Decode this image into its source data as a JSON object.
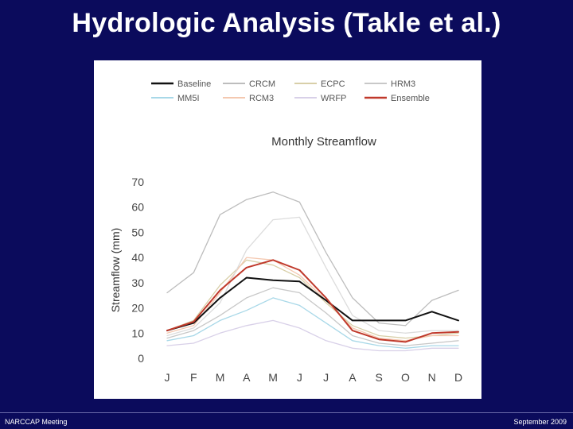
{
  "slide": {
    "title": "Hydrologic Analysis (Takle et al.)",
    "footer_left": "NARCCAP Meeting",
    "footer_right": "September 2009"
  },
  "chart_data": {
    "type": "line",
    "title": "Monthly Streamflow",
    "xlabel": "",
    "ylabel": "Streamflow (mm)",
    "ylim": [
      0,
      70
    ],
    "yticks": [
      0,
      10,
      20,
      30,
      40,
      50,
      60,
      70
    ],
    "categories": [
      "J",
      "F",
      "M",
      "A",
      "M",
      "J",
      "J",
      "A",
      "S",
      "O",
      "N",
      "D"
    ],
    "grid": false,
    "legend_position": "top",
    "series": [
      {
        "name": "Baseline",
        "color": "#111111",
        "width": 2,
        "values": [
          11,
          14,
          24,
          32,
          31,
          30.5,
          23,
          15,
          15,
          15,
          18.5,
          15
        ]
      },
      {
        "name": "CRCM",
        "color": "#bdbdbd",
        "width": 1.3,
        "values": [
          26,
          34,
          57,
          63,
          66,
          62,
          42,
          24,
          14,
          13,
          23,
          27
        ]
      },
      {
        "name": "ECPC",
        "color": "#d8cfa8",
        "width": 1.3,
        "values": [
          11,
          15,
          29,
          39,
          37,
          32,
          22,
          13,
          9,
          8,
          9,
          10
        ]
      },
      {
        "name": "HRM3",
        "color": "#c8c8c8",
        "width": 1.3,
        "values": [
          8,
          11,
          17,
          24,
          28,
          26,
          18,
          9,
          6,
          5,
          6,
          7
        ]
      },
      {
        "name": "MM5I",
        "color": "#a8d8e8",
        "width": 1.3,
        "values": [
          7,
          9,
          15,
          19,
          24,
          21,
          14,
          7,
          5,
          4,
          5,
          5
        ]
      },
      {
        "name": "RCM3",
        "color": "#f4c8b0",
        "width": 1.3,
        "values": [
          10,
          13,
          26,
          40,
          39,
          33,
          23,
          12,
          8,
          7,
          9,
          9
        ]
      },
      {
        "name": "WRFP",
        "color": "#d8d0e8",
        "width": 1.3,
        "values": [
          5,
          6,
          10,
          13,
          15,
          12,
          7,
          4,
          3,
          3,
          4,
          4
        ]
      },
      {
        "name": "",
        "color": "#dcdcdc",
        "width": 1.3,
        "values": [
          9,
          12,
          22,
          43,
          55,
          56,
          36,
          17,
          11,
          10,
          11,
          11
        ]
      },
      {
        "name": "Ensemble",
        "color": "#c0392b",
        "width": 2,
        "values": [
          11,
          14.5,
          27,
          36,
          39,
          35,
          24,
          11,
          7.5,
          6.5,
          10,
          10.5
        ]
      }
    ]
  }
}
